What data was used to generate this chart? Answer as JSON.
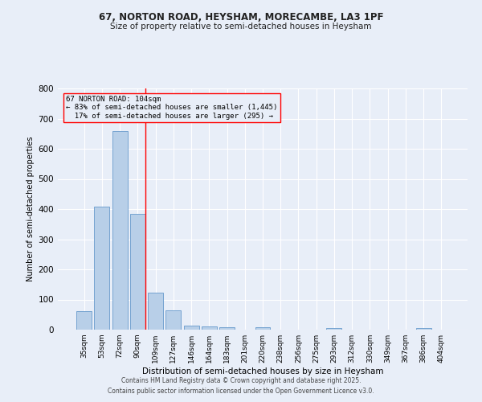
{
  "title1": "67, NORTON ROAD, HEYSHAM, MORECAMBE, LA3 1PF",
  "title2": "Size of property relative to semi-detached houses in Heysham",
  "xlabel": "Distribution of semi-detached houses by size in Heysham",
  "ylabel": "Number of semi-detached properties",
  "bar_categories": [
    "35sqm",
    "53sqm",
    "72sqm",
    "90sqm",
    "109sqm",
    "127sqm",
    "146sqm",
    "164sqm",
    "183sqm",
    "201sqm",
    "220sqm",
    "238sqm",
    "256sqm",
    "275sqm",
    "293sqm",
    "312sqm",
    "330sqm",
    "349sqm",
    "367sqm",
    "386sqm",
    "404sqm"
  ],
  "bar_values": [
    62,
    407,
    660,
    383,
    122,
    63,
    14,
    10,
    7,
    0,
    8,
    0,
    0,
    0,
    5,
    0,
    0,
    0,
    0,
    5,
    0
  ],
  "bar_color": "#b8cfe8",
  "bar_edgecolor": "#6699cc",
  "red_line_index": 3,
  "annotation_line1": "67 NORTON ROAD: 104sqm",
  "annotation_line2": "← 83% of semi-detached houses are smaller (1,445)",
  "annotation_line3": "  17% of semi-detached houses are larger (295) →",
  "ylim": [
    0,
    800
  ],
  "yticks": [
    0,
    100,
    200,
    300,
    400,
    500,
    600,
    700,
    800
  ],
  "bg_color": "#e8eef8",
  "grid_color": "#ffffff",
  "footer_line1": "Contains HM Land Registry data © Crown copyright and database right 2025.",
  "footer_line2": "Contains public sector information licensed under the Open Government Licence v3.0."
}
